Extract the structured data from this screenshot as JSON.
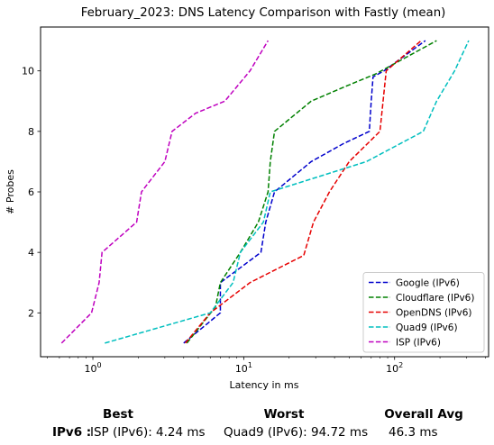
{
  "chart_data": {
    "type": "line",
    "title": "February_2023: DNS Latency Comparison with Fastly (mean)",
    "xlabel": "Latency in ms",
    "ylabel": "# Probes",
    "xscale": "log",
    "xlim": [
      0.45,
      420
    ],
    "ylim": [
      0.55,
      11.45
    ],
    "x_ticks": [
      {
        "value": 1,
        "base": "10",
        "exp": "0"
      },
      {
        "value": 10,
        "base": "10",
        "exp": "1"
      },
      {
        "value": 100,
        "base": "10",
        "exp": "2"
      }
    ],
    "y_ticks": [
      2,
      4,
      6,
      8,
      10
    ],
    "legend_position": "bottom-right",
    "grid": false,
    "series": [
      {
        "name": "Google (IPv6)",
        "color": "#0000cc",
        "points": [
          [
            4.0,
            1
          ],
          [
            7.0,
            2
          ],
          [
            7.0,
            3
          ],
          [
            13.0,
            4
          ],
          [
            14.0,
            5
          ],
          [
            16.0,
            6
          ],
          [
            28.0,
            7
          ],
          [
            46.0,
            7.6
          ],
          [
            68.0,
            8
          ],
          [
            70.0,
            9
          ],
          [
            72.0,
            9.8
          ],
          [
            85.0,
            10
          ],
          [
            160.0,
            11
          ]
        ]
      },
      {
        "name": "Cloudflare (IPv6)",
        "color": "#008000",
        "points": [
          [
            4.2,
            1
          ],
          [
            6.5,
            2.2
          ],
          [
            7.0,
            3
          ],
          [
            9.5,
            4
          ],
          [
            12.5,
            5
          ],
          [
            14.5,
            6
          ],
          [
            15.0,
            7
          ],
          [
            16.0,
            8
          ],
          [
            28.0,
            9
          ],
          [
            48.0,
            9.5
          ],
          [
            75.0,
            9.9
          ],
          [
            190.0,
            11
          ]
        ]
      },
      {
        "name": "OpenDNS (IPv6)",
        "color": "#e60000",
        "points": [
          [
            4.1,
            1
          ],
          [
            6.0,
            2
          ],
          [
            11.0,
            3
          ],
          [
            25.0,
            3.9
          ],
          [
            29.0,
            5
          ],
          [
            37.0,
            6
          ],
          [
            50.0,
            7
          ],
          [
            80.0,
            8
          ],
          [
            88.0,
            10
          ],
          [
            150.0,
            11
          ]
        ]
      },
      {
        "name": "Quad9 (IPv6)",
        "color": "#00bfbf",
        "points": [
          [
            1.2,
            1
          ],
          [
            6.0,
            2
          ],
          [
            8.5,
            3
          ],
          [
            9.5,
            4
          ],
          [
            13.5,
            5
          ],
          [
            15.0,
            6
          ],
          [
            65.0,
            7
          ],
          [
            155.0,
            8
          ],
          [
            190.0,
            9
          ],
          [
            250.0,
            10
          ],
          [
            310.0,
            11
          ]
        ]
      },
      {
        "name": "ISP (IPv6)",
        "color": "#bf00bf",
        "points": [
          [
            0.62,
            1
          ],
          [
            0.98,
            2
          ],
          [
            1.1,
            3
          ],
          [
            1.15,
            4
          ],
          [
            1.95,
            5
          ],
          [
            2.1,
            6
          ],
          [
            3.0,
            7
          ],
          [
            3.35,
            8
          ],
          [
            4.8,
            8.6
          ],
          [
            7.5,
            9
          ],
          [
            11.0,
            10
          ],
          [
            14.5,
            11
          ]
        ]
      }
    ]
  },
  "summary": {
    "headers": {
      "best": "Best",
      "worst": "Worst",
      "avg": "Overall Avg"
    },
    "row_label": "IPv6 :",
    "best": "ISP (IPv6): 4.24 ms",
    "worst": "Quad9 (IPv6): 94.72 ms",
    "avg": "46.3 ms"
  }
}
